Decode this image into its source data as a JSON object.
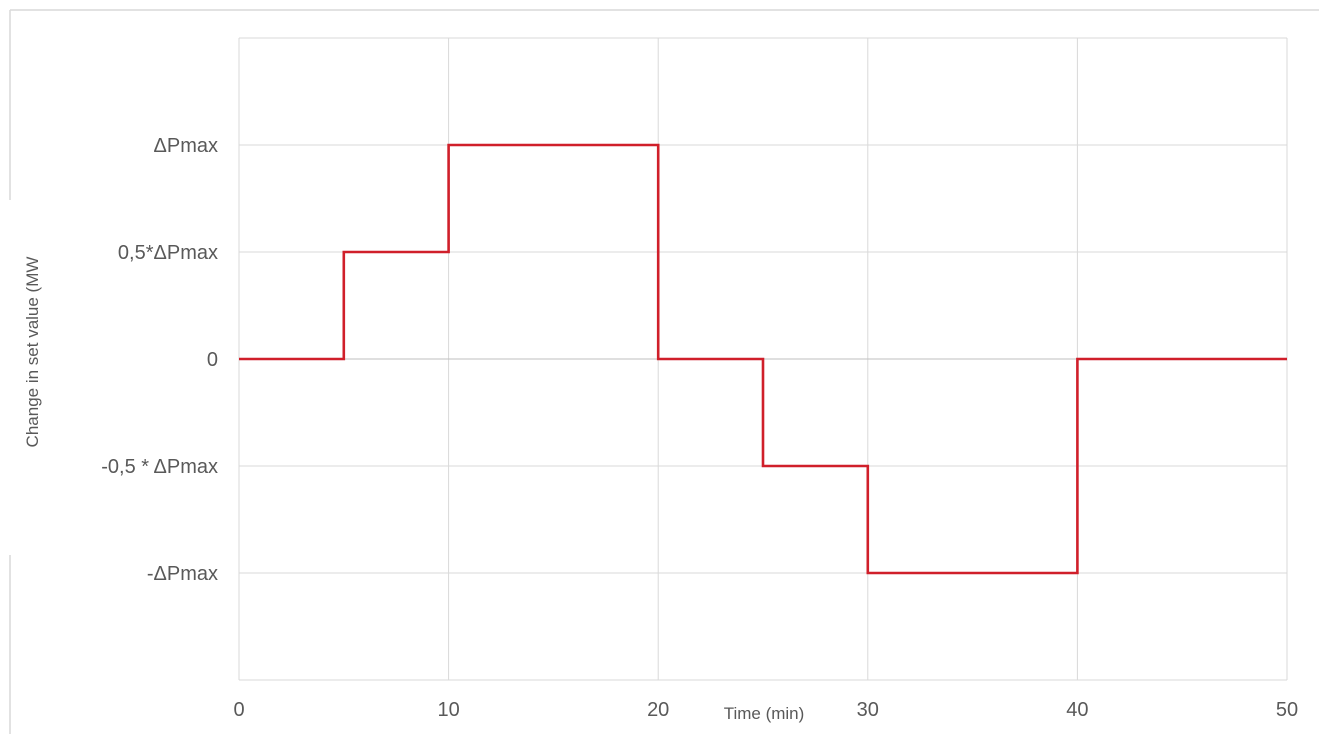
{
  "chart_data": {
    "type": "line",
    "title": "",
    "xlabel": "Time (min)",
    "ylabel": "Change in set value (MW",
    "xlim": [
      0,
      50
    ],
    "ylim": [
      -1.5,
      1.5
    ],
    "x_ticks": [
      0,
      10,
      20,
      30,
      40,
      50
    ],
    "x_tick_labels": [
      "0",
      "10",
      "20",
      "30",
      "40",
      "50"
    ],
    "y_gridlines": [
      1.5,
      1.0,
      0.5,
      0,
      -0.5,
      -1.0,
      -1.5
    ],
    "y_ticks": [
      1.0,
      0.5,
      0,
      -0.5,
      -1.0
    ],
    "y_tick_labels": [
      "ΔPmax",
      "0,5*ΔPmax",
      "0",
      "-0,5 * ΔPmax",
      "-ΔPmax"
    ],
    "grid": true,
    "legend": "none",
    "series": [
      {
        "color": "#d01f2a",
        "step": true,
        "points": [
          [
            0,
            0
          ],
          [
            5,
            0
          ],
          [
            5,
            0.5
          ],
          [
            10,
            0.5
          ],
          [
            10,
            1.0
          ],
          [
            20,
            1.0
          ],
          [
            20,
            0
          ],
          [
            25,
            0
          ],
          [
            25,
            -0.5
          ],
          [
            30,
            -0.5
          ],
          [
            30,
            -1.0
          ],
          [
            40,
            -1.0
          ],
          [
            40,
            0
          ],
          [
            50,
            0
          ]
        ]
      }
    ]
  }
}
